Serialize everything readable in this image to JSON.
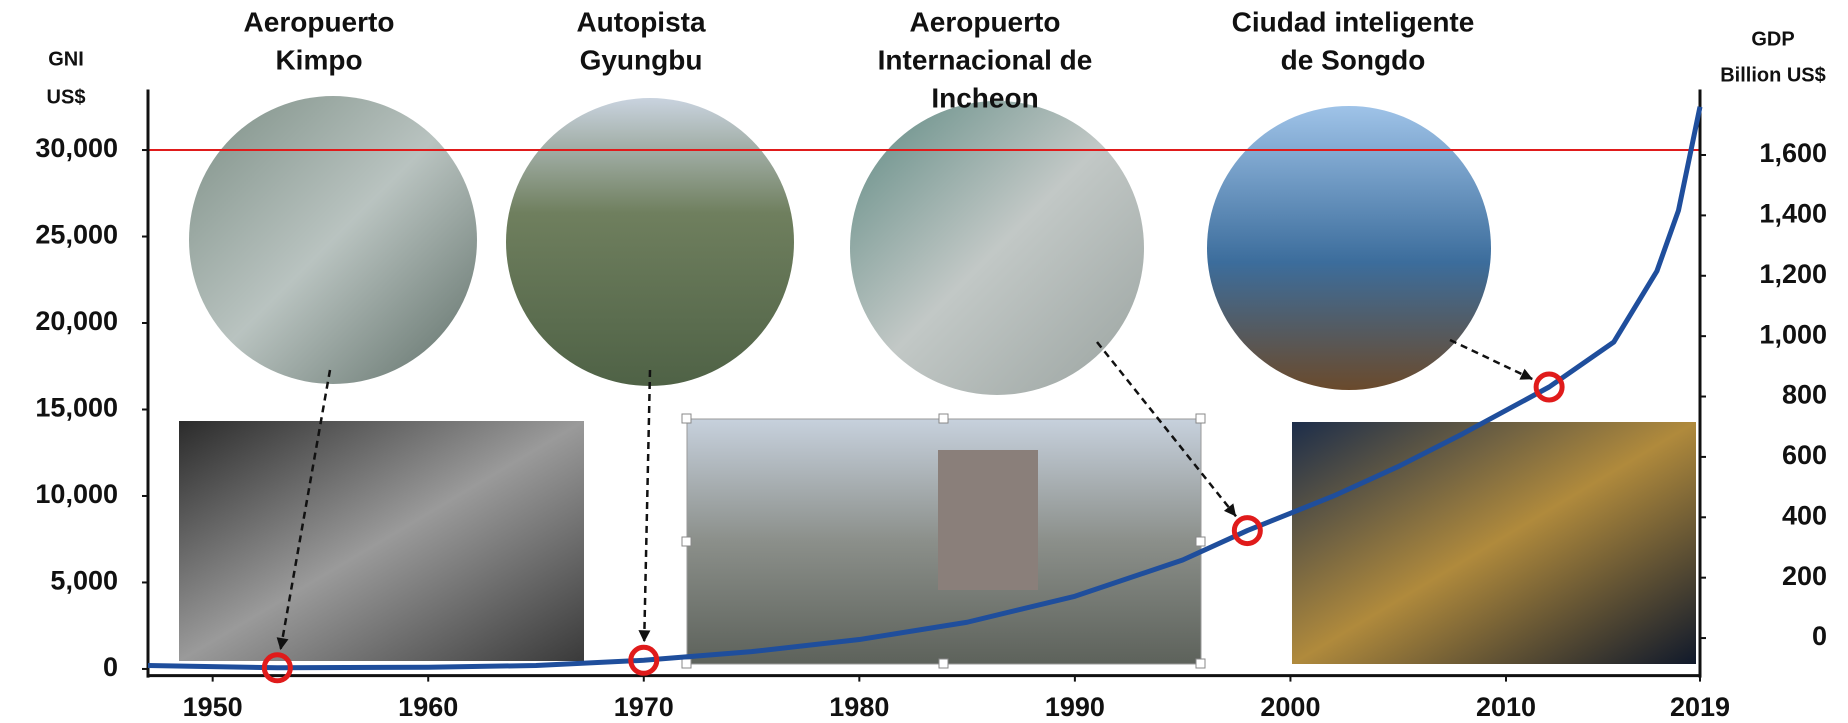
{
  "chart_data": {
    "type": "line",
    "y_label": [
      "GNI",
      "US$"
    ],
    "y2_label": [
      "GDP",
      "Billion US$"
    ],
    "x": [
      1947,
      1953,
      1960,
      1965,
      1970,
      1975,
      1980,
      1985,
      1990,
      1995,
      1998,
      2002,
      2005,
      2008,
      2012,
      2015,
      2017,
      2018,
      2019
    ],
    "series": [
      {
        "color": "#1f4e9c",
        "values": [
          200,
          67,
          100,
          200,
          500,
          1000,
          1700,
          2700,
          4200,
          6300,
          8000,
          10000,
          11700,
          13600,
          16300,
          18900,
          23000,
          26500,
          32500
        ]
      }
    ],
    "milestones": [
      {
        "label": [
          "Aeropuerto",
          "Kimpo"
        ],
        "x": 1953,
        "value": 67
      },
      {
        "label": [
          "Autopista",
          "Gyungbu"
        ],
        "x": 1970,
        "value": 500
      },
      {
        "label": [
          "Aeropuerto",
          "Internacional de",
          "Incheon"
        ],
        "x": 1998,
        "value": 8000
      },
      {
        "label": [
          "Ciudad inteligente",
          "de Songdo"
        ],
        "x": 2012,
        "value": 16300
      }
    ],
    "milestone_color": "#e01b1b",
    "reference_line": {
      "value": 30000,
      "color": "#e01b1b"
    },
    "xlim": [
      1947,
      2019
    ],
    "xticks": [
      1950,
      1960,
      1970,
      1980,
      1990,
      2000,
      2010,
      2019
    ],
    "ylim": [
      -500,
      33500
    ],
    "yticks": [
      0,
      {
        "value": 5000,
        "label": "5,000"
      },
      {
        "value": 10000,
        "label": "10,000"
      },
      {
        "value": 15000,
        "label": "15,000"
      },
      {
        "value": 20000,
        "label": "20,000"
      },
      {
        "value": 25000,
        "label": "25,000"
      },
      {
        "value": 30000,
        "label": "30,000"
      }
    ],
    "y2lim": [
      -131,
      1817
    ],
    "y2ticks": [
      0,
      200,
      400,
      600,
      800,
      {
        "value": 1000,
        "label": "1,000"
      },
      {
        "value": 1200,
        "label": "1,200"
      },
      {
        "value": 1400,
        "label": "1,400"
      },
      {
        "value": 1600,
        "label": "1,600"
      }
    ]
  }
}
